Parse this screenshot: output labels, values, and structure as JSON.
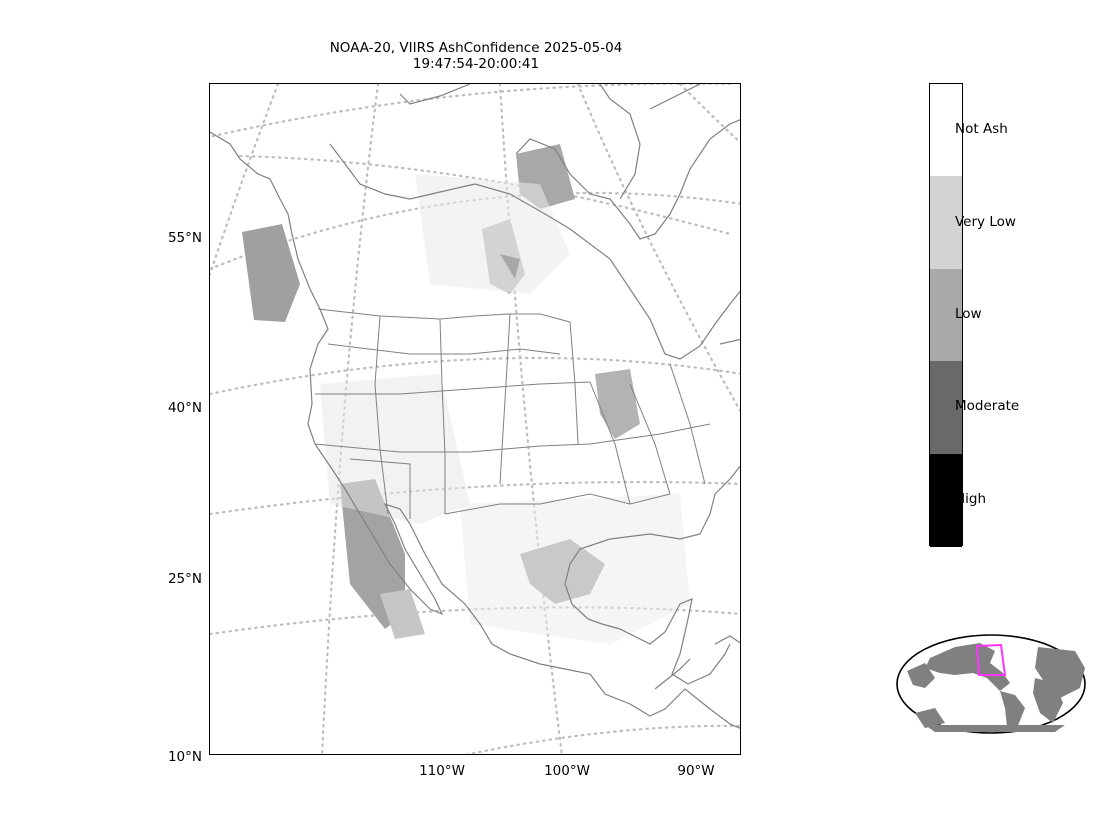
{
  "title": {
    "line1": "NOAA-20, VIIRS AshConfidence 2025-05-04",
    "line2": "19:47:54-20:00:41"
  },
  "map": {
    "lat_labels": [
      "55°N",
      "40°N",
      "25°N",
      "10°N"
    ],
    "lon_labels": [
      "110°W",
      "100°W",
      "90°W"
    ],
    "graticule": "dotted",
    "border_color": "#808080"
  },
  "colorbar": {
    "categories": [
      {
        "label": "Not Ash",
        "color": "#ffffff"
      },
      {
        "label": "Very Low",
        "color": "#d3d3d3"
      },
      {
        "label": "Low",
        "color": "#a9a9a9"
      },
      {
        "label": "Moderate",
        "color": "#696969"
      },
      {
        "label": "High",
        "color": "#000000"
      }
    ]
  },
  "inset": {
    "land_color": "#808080",
    "outline_color": "#ff33ff"
  }
}
